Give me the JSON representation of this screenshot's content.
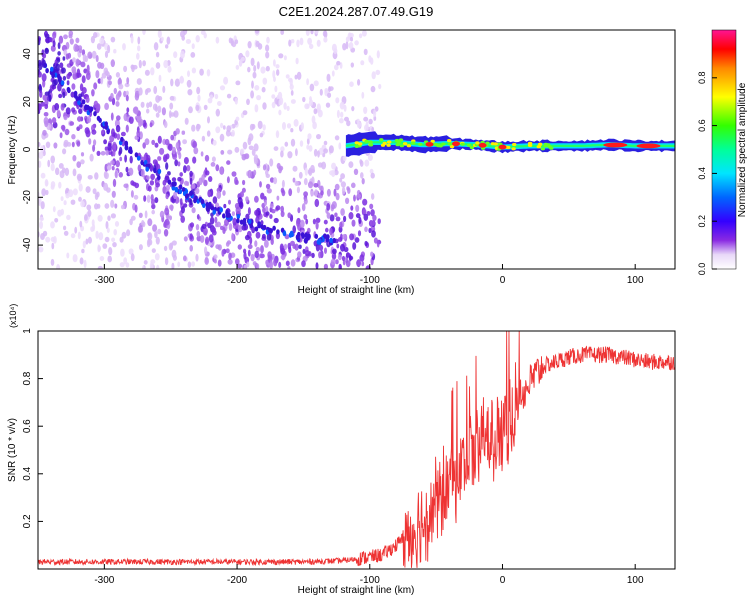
{
  "figure": {
    "title": "C2E1.2024.287.07.49.G19"
  },
  "chart_data": [
    {
      "type": "heatmap",
      "title": "C2E1.2024.287.07.49.G19",
      "xlabel": "Height of straight line (km)",
      "ylabel": "Frequency (Hz)",
      "xlim": [
        -350,
        130
      ],
      "ylim": [
        -50,
        50
      ],
      "xticks": [
        -300,
        -200,
        -100,
        0,
        100
      ],
      "yticks": [
        -40,
        -20,
        0,
        20,
        40
      ],
      "colorbar": {
        "label": "Normalized spectral amplitude",
        "range": [
          0,
          1
        ],
        "ticks": [
          0.0,
          0.2,
          0.4,
          0.6,
          0.8
        ],
        "colormap": "rainbow (violet → blue → cyan → green → yellow → red → magenta)"
      },
      "features": [
        {
          "name": "descending trace",
          "x": [
            -345,
            -330,
            -300,
            -270,
            -240,
            -210,
            -180,
            -150,
            -125
          ],
          "y": [
            35,
            27,
            10,
            -6,
            -18,
            -27,
            -33,
            -37,
            -38
          ]
        },
        {
          "name": "carrier line near 0 Hz",
          "x": [
            -118,
            -100,
            -80,
            -60,
            -40,
            -20,
            0,
            20,
            40,
            60,
            80,
            100,
            130
          ],
          "y": [
            1.5,
            3.0,
            3.0,
            2.0,
            2.5,
            2.0,
            1.0,
            1.5,
            1.5,
            1.5,
            2.0,
            1.5,
            1.5
          ],
          "peak_amplitude_x": [
            -55,
            -35,
            -15,
            0,
            85,
            110
          ]
        }
      ]
    },
    {
      "type": "line",
      "xlabel": "Height of straight line (km)",
      "ylabel": "SNR (10 * v/v)",
      "y_multiplier": "(x10⁴)",
      "xlim": [
        -350,
        130
      ],
      "ylim": [
        0,
        1.0
      ],
      "xticks": [
        -300,
        -200,
        -100,
        0,
        100
      ],
      "yticks": [
        0.2,
        0.4,
        0.6,
        0.8,
        1.0
      ],
      "color": "#ee3333",
      "series": [
        {
          "x": [
            -350,
            -300,
            -250,
            -200,
            -150,
            -120,
            -100,
            -90,
            -80,
            -70,
            -60,
            -50,
            -40,
            -30,
            -20,
            -10,
            0,
            10,
            20,
            30,
            40,
            50,
            60,
            70,
            80,
            90,
            100,
            110,
            120,
            130
          ],
          "y": [
            0.03,
            0.03,
            0.03,
            0.03,
            0.03,
            0.035,
            0.05,
            0.06,
            0.1,
            0.15,
            0.2,
            0.28,
            0.35,
            0.42,
            0.5,
            0.55,
            0.6,
            0.68,
            0.78,
            0.85,
            0.87,
            0.89,
            0.9,
            0.9,
            0.9,
            0.89,
            0.88,
            0.87,
            0.87,
            0.87
          ]
        }
      ]
    }
  ]
}
